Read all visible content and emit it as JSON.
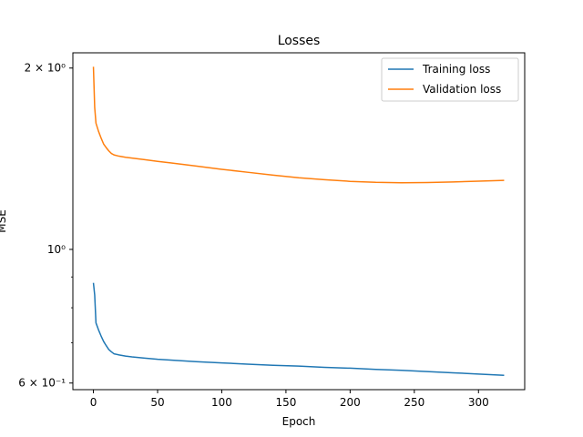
{
  "chart_data": {
    "type": "line",
    "title": "Losses",
    "xlabel": "Epoch",
    "ylabel": "MSE",
    "y_scale": "log",
    "xlim": [
      -16,
      336
    ],
    "ylim": [
      0.585,
      2.12
    ],
    "x_ticks": [
      0,
      50,
      100,
      150,
      200,
      250,
      300
    ],
    "y_ticks": [
      {
        "value": 0.6,
        "label": "6 × 10⁻¹"
      },
      {
        "value": 1.0,
        "label": "10⁰"
      },
      {
        "value": 2.0,
        "label": "2 × 10⁰"
      }
    ],
    "grid": false,
    "legend_position": "top-right",
    "series": [
      {
        "name": "Training loss",
        "color": "#1f77b4",
        "x": [
          0,
          1,
          2,
          4,
          6,
          8,
          10,
          12,
          14,
          16,
          20,
          25,
          30,
          40,
          50,
          60,
          80,
          100,
          120,
          140,
          160,
          180,
          200,
          220,
          240,
          260,
          280,
          300,
          320
        ],
        "y": [
          0.88,
          0.84,
          0.755,
          0.735,
          0.718,
          0.703,
          0.692,
          0.682,
          0.676,
          0.671,
          0.668,
          0.665,
          0.663,
          0.66,
          0.657,
          0.655,
          0.651,
          0.648,
          0.645,
          0.642,
          0.64,
          0.637,
          0.635,
          0.632,
          0.63,
          0.627,
          0.624,
          0.621,
          0.618
        ]
      },
      {
        "name": "Validation loss",
        "color": "#ff7f0e",
        "x": [
          0,
          1,
          2,
          4,
          6,
          8,
          10,
          12,
          14,
          16,
          20,
          25,
          30,
          40,
          50,
          60,
          80,
          100,
          120,
          140,
          160,
          180,
          200,
          220,
          240,
          260,
          280,
          300,
          320
        ],
        "y": [
          2.01,
          1.72,
          1.62,
          1.57,
          1.53,
          1.495,
          1.475,
          1.457,
          1.443,
          1.435,
          1.428,
          1.422,
          1.418,
          1.409,
          1.4,
          1.392,
          1.375,
          1.358,
          1.343,
          1.328,
          1.315,
          1.305,
          1.297,
          1.292,
          1.29,
          1.291,
          1.294,
          1.298,
          1.302
        ]
      }
    ]
  }
}
